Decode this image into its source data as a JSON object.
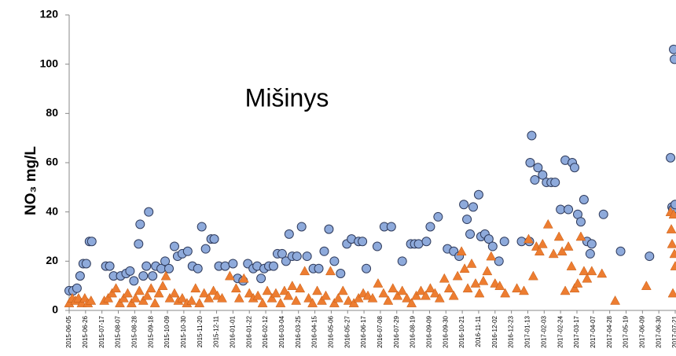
{
  "chart_data": {
    "type": "scatter",
    "title": "Mišinys",
    "y_label": "NO₃ mg/L",
    "xlim": [
      "2015-06-05",
      "2017-07-22"
    ],
    "xticks": [
      "2015-06-05",
      "2015-06-26",
      "2015-07-17",
      "2015-08-07",
      "2015-08-28",
      "2015-09-18",
      "2015-10-09",
      "2015-10-30",
      "2015-11-20",
      "2015-12-11",
      "2016-01-01",
      "2016-01-22",
      "2016-02-12",
      "2016-03-04",
      "2016-03-25",
      "2016-04-15",
      "2016-05-06",
      "2016-05-27",
      "2016-06-17",
      "2016-07-08",
      "2016-07-29",
      "2016-08-19",
      "2016-09-09",
      "2016-09-30",
      "2016-10-21",
      "2016-11-11",
      "2016-12-02",
      "2016-12-23",
      "2017-01-13",
      "2017-02-03",
      "2017-02-24",
      "2017-03-17",
      "2017-04-07",
      "2017-04-28",
      "2017-05-19",
      "2017-06-09",
      "2017-06-30",
      "2017-07-21"
    ],
    "ylim": [
      0,
      120
    ],
    "yticks": [
      0,
      20,
      40,
      60,
      80,
      100,
      120
    ],
    "grid": false,
    "series": [
      {
        "marker": "circle",
        "color": "#8eaadb",
        "edge_color": "#2f3b5c",
        "x": [
          "2015-06-05",
          "2015-06-10",
          "2015-06-15",
          "2015-06-19",
          "2015-06-23",
          "2015-06-27",
          "2015-07-01",
          "2015-07-04",
          "2015-07-22",
          "2015-07-27",
          "2015-08-01",
          "2015-08-10",
          "2015-08-17",
          "2015-08-22",
          "2015-08-27",
          "2015-09-02",
          "2015-09-04",
          "2015-09-08",
          "2015-09-12",
          "2015-09-15",
          "2015-09-20",
          "2015-09-24",
          "2015-10-01",
          "2015-10-06",
          "2015-10-11",
          "2015-10-18",
          "2015-10-22",
          "2015-10-28",
          "2015-11-04",
          "2015-11-10",
          "2015-11-17",
          "2015-11-22",
          "2015-11-27",
          "2015-12-04",
          "2015-12-08",
          "2015-12-14",
          "2015-12-22",
          "2016-01-01",
          "2016-01-07",
          "2016-01-14",
          "2016-01-20",
          "2016-01-27",
          "2016-02-01",
          "2016-02-06",
          "2016-02-10",
          "2016-02-16",
          "2016-02-22",
          "2016-02-27",
          "2016-03-04",
          "2016-03-09",
          "2016-03-13",
          "2016-03-17",
          "2016-03-23",
          "2016-03-29",
          "2016-04-05",
          "2016-04-13",
          "2016-04-20",
          "2016-04-27",
          "2016-05-03",
          "2016-05-10",
          "2016-05-18",
          "2016-05-26",
          "2016-06-01",
          "2016-06-10",
          "2016-06-15",
          "2016-06-20",
          "2016-07-04",
          "2016-07-13",
          "2016-07-22",
          "2016-08-05",
          "2016-08-16",
          "2016-08-21",
          "2016-08-26",
          "2016-09-05",
          "2016-09-10",
          "2016-09-20",
          "2016-10-02",
          "2016-10-10",
          "2016-10-17",
          "2016-10-23",
          "2016-10-27",
          "2016-10-31",
          "2016-11-04",
          "2016-11-11",
          "2016-11-14",
          "2016-11-19",
          "2016-11-24",
          "2016-11-29",
          "2016-12-07",
          "2016-12-14",
          "2017-01-05",
          "2017-01-15",
          "2017-01-18",
          "2017-01-16",
          "2017-01-22",
          "2017-01-26",
          "2017-02-01",
          "2017-02-06",
          "2017-02-12",
          "2017-02-17",
          "2017-02-24",
          "2017-03-02",
          "2017-03-06",
          "2017-03-11",
          "2017-03-14",
          "2017-03-18",
          "2017-03-22",
          "2017-03-26",
          "2017-03-30",
          "2017-04-03",
          "2017-04-05",
          "2017-04-20",
          "2017-05-12",
          "2017-06-18",
          "2017-07-15",
          "2017-07-17",
          "2017-07-18",
          "2017-07-19",
          "2017-07-20",
          "2017-07-21"
        ],
        "values": [
          8,
          8,
          9,
          14,
          19,
          19,
          28,
          28,
          18,
          18,
          14,
          14,
          15,
          16,
          12,
          27,
          35,
          14,
          18,
          40,
          14,
          18,
          17,
          20,
          17,
          26,
          22,
          23,
          24,
          18,
          17,
          34,
          25,
          29,
          29,
          18,
          18,
          19,
          13,
          12,
          19,
          17,
          18,
          13,
          17,
          18,
          18,
          23,
          23,
          20,
          31,
          22,
          22,
          34,
          22,
          17,
          17,
          24,
          33,
          20,
          15,
          27,
          29,
          28,
          28,
          17,
          26,
          34,
          34,
          20,
          27,
          27,
          27,
          28,
          34,
          38,
          25,
          24,
          22,
          43,
          37,
          31,
          42,
          47,
          30,
          31,
          29,
          26,
          20,
          28,
          28,
          28,
          71,
          60,
          53,
          58,
          55,
          52,
          52,
          52,
          41,
          61,
          41,
          60,
          58,
          39,
          36,
          45,
          28,
          23,
          27,
          39,
          24,
          22,
          62,
          42,
          41,
          106,
          102,
          43
        ]
      },
      {
        "marker": "triangle",
        "color": "#ed7d31",
        "edge_color": "#c55a11",
        "x": [
          "2015-06-05",
          "2015-06-09",
          "2015-06-13",
          "2015-06-17",
          "2015-06-21",
          "2015-06-25",
          "2015-06-29",
          "2015-07-03",
          "2015-07-20",
          "2015-07-25",
          "2015-07-30",
          "2015-08-04",
          "2015-08-09",
          "2015-08-14",
          "2015-08-19",
          "2015-08-24",
          "2015-08-29",
          "2015-09-03",
          "2015-09-08",
          "2015-09-13",
          "2015-09-18",
          "2015-09-23",
          "2015-09-28",
          "2015-10-03",
          "2015-10-07",
          "2015-10-12",
          "2015-10-18",
          "2015-10-23",
          "2015-10-28",
          "2015-11-03",
          "2015-11-09",
          "2015-11-14",
          "2015-11-19",
          "2015-11-25",
          "2015-12-01",
          "2015-12-07",
          "2015-12-12",
          "2015-12-18",
          "2015-12-28",
          "2016-01-05",
          "2016-01-09",
          "2016-01-15",
          "2016-01-22",
          "2016-01-27",
          "2016-02-02",
          "2016-02-08",
          "2016-02-14",
          "2016-02-20",
          "2016-02-25",
          "2016-03-02",
          "2016-03-07",
          "2016-03-12",
          "2016-03-17",
          "2016-03-22",
          "2016-03-27",
          "2016-04-02",
          "2016-04-07",
          "2016-04-12",
          "2016-04-18",
          "2016-04-24",
          "2016-04-29",
          "2016-05-05",
          "2016-05-10",
          "2016-05-15",
          "2016-05-21",
          "2016-05-28",
          "2016-06-04",
          "2016-06-10",
          "2016-06-16",
          "2016-06-22",
          "2016-06-28",
          "2016-07-05",
          "2016-07-12",
          "2016-07-18",
          "2016-07-24",
          "2016-07-30",
          "2016-08-05",
          "2016-08-11",
          "2016-08-17",
          "2016-08-23",
          "2016-08-29",
          "2016-09-04",
          "2016-09-10",
          "2016-09-16",
          "2016-09-22",
          "2016-09-28",
          "2016-10-04",
          "2016-10-10",
          "2016-10-15",
          "2016-10-20",
          "2016-10-24",
          "2016-10-28",
          "2016-11-02",
          "2016-11-07",
          "2016-11-12",
          "2016-11-17",
          "2016-11-22",
          "2016-11-27",
          "2016-12-02",
          "2016-12-08",
          "2016-12-15",
          "2016-12-30",
          "2017-01-08",
          "2017-01-14",
          "2017-01-20",
          "2017-01-24",
          "2017-01-28",
          "2017-02-01",
          "2017-02-08",
          "2017-02-15",
          "2017-02-22",
          "2017-02-26",
          "2017-03-02",
          "2017-03-06",
          "2017-03-10",
          "2017-03-14",
          "2017-03-18",
          "2017-03-22",
          "2017-03-26",
          "2017-03-30",
          "2017-04-05",
          "2017-04-18",
          "2017-05-05",
          "2017-06-14",
          "2017-07-15",
          "2017-07-16",
          "2017-07-17",
          "2017-07-18",
          "2017-07-19",
          "2017-07-20",
          "2017-07-21"
        ],
        "values": [
          3,
          5,
          4,
          5,
          3,
          5,
          3,
          4,
          4,
          5,
          7,
          9,
          3,
          5,
          7,
          3,
          5,
          8,
          4,
          6,
          9,
          3,
          7,
          10,
          14,
          5,
          7,
          4,
          5,
          3,
          4,
          9,
          3,
          7,
          5,
          8,
          6,
          5,
          14,
          9,
          5,
          13,
          7,
          5,
          6,
          3,
          8,
          5,
          7,
          3,
          8,
          6,
          10,
          4,
          9,
          16,
          5,
          3,
          8,
          4,
          6,
          16,
          3,
          5,
          8,
          4,
          3,
          5,
          7,
          6,
          5,
          11,
          7,
          4,
          9,
          6,
          8,
          5,
          3,
          6,
          8,
          6,
          9,
          7,
          5,
          13,
          9,
          6,
          14,
          24,
          17,
          9,
          19,
          11,
          7,
          12,
          16,
          22,
          11,
          10,
          7,
          9,
          8,
          29,
          14,
          26,
          24,
          27,
          35,
          23,
          30,
          24,
          8,
          26,
          18,
          9,
          11,
          30,
          16,
          13,
          16,
          15,
          4,
          10,
          40,
          33,
          27,
          7,
          39,
          23,
          18
        ]
      }
    ]
  }
}
